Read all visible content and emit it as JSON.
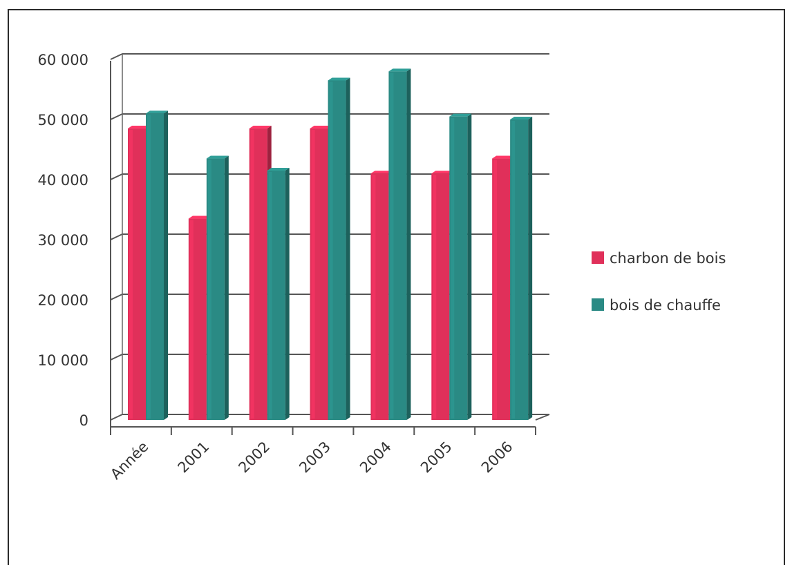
{
  "chart_data": {
    "type": "bar",
    "categories": [
      "Année",
      "2001",
      "2002",
      "2003",
      "2004",
      "2005",
      "2006"
    ],
    "series": [
      {
        "name": "charbon de bois",
        "color": "#e0305a",
        "values": [
          48500,
          33500,
          48500,
          48500,
          41000,
          41000,
          43500
        ]
      },
      {
        "name": "bois de chauffe",
        "color": "#2a8a84",
        "values": [
          51000,
          43500,
          41500,
          56500,
          58000,
          50500,
          50000
        ]
      }
    ],
    "yticks": [
      "0",
      "10 000",
      "20 000",
      "30 000",
      "40 000",
      "50 000",
      "60 000"
    ],
    "ylim": [
      0,
      60000
    ],
    "grid": true,
    "legend_position": "right",
    "title": "",
    "xlabel": "",
    "ylabel": ""
  }
}
